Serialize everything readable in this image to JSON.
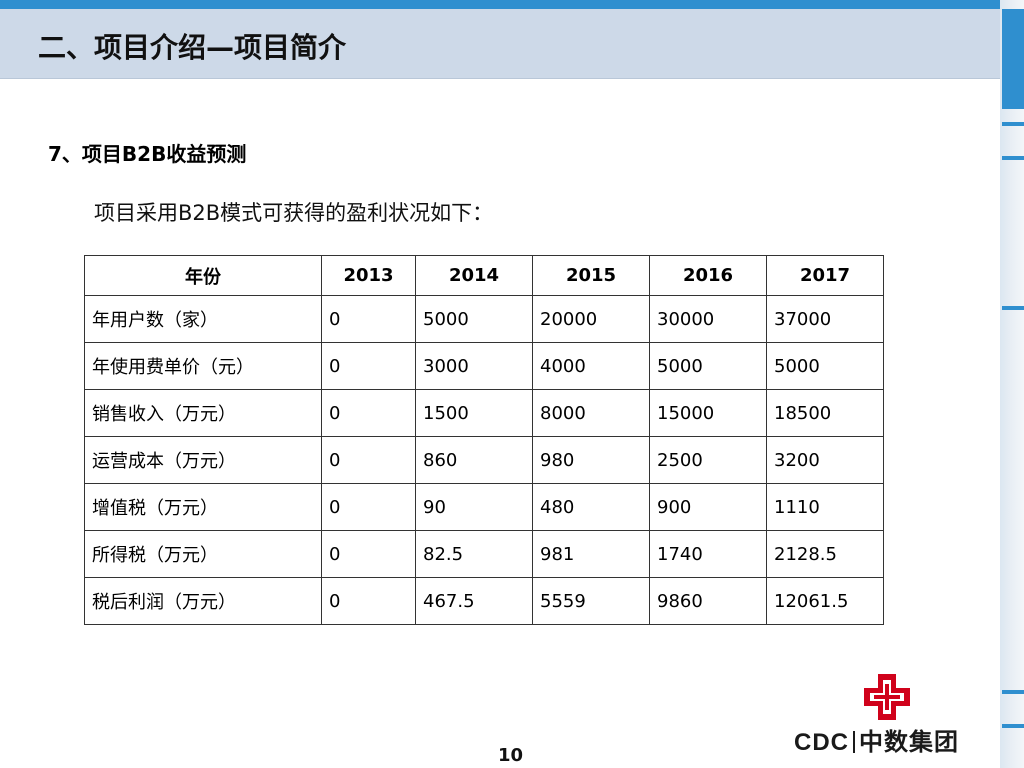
{
  "slide": {
    "title": "二、项目介绍—项目简介",
    "heading": "7、项目B2B收益预测",
    "intro": "项目采用B2B模式可获得的盈利状况如下：",
    "page_number": "10"
  },
  "table": {
    "headers": [
      "年份",
      "2013",
      "2014",
      "2015",
      "2016",
      "2017"
    ],
    "rows": [
      [
        "年用户数（家）",
        "0",
        "5000",
        "20000",
        "30000",
        "37000"
      ],
      [
        "年使用费单价（元）",
        "0",
        "3000",
        "4000",
        "5000",
        "5000"
      ],
      [
        "销售收入（万元）",
        "0",
        "1500",
        "8000",
        "15000",
        "18500"
      ],
      [
        "运营成本（万元）",
        "0",
        "860",
        "980",
        "2500",
        "3200"
      ],
      [
        "增值税（万元）",
        "0",
        "90",
        "480",
        "900",
        "1110"
      ],
      [
        "所得税（万元）",
        "0",
        "82.5",
        "981",
        "1740",
        "2128.5"
      ],
      [
        "税后利润（万元）",
        "0",
        "467.5",
        "5559",
        "9860",
        "12061.5"
      ]
    ]
  },
  "logo": {
    "brand_latin": "CDC",
    "brand_cn": "中数集团",
    "mark_color": "#d0021b"
  },
  "colors": {
    "accent_blue": "#2f8fcf",
    "title_bar": "#cdd9e8"
  }
}
